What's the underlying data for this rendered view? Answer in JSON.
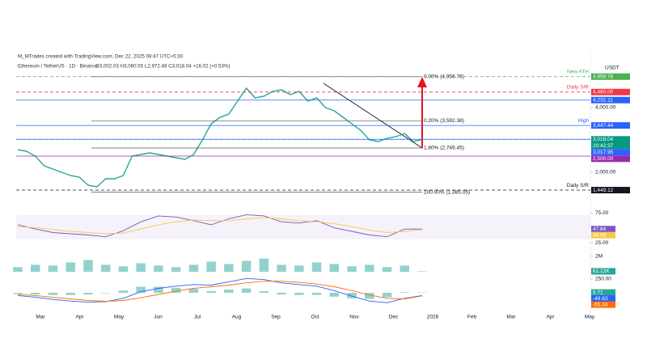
{
  "header": {
    "author_line": "M_MTrades created with TradingView.com, Dec 22, 2025 08:47 UTC+5:30",
    "symbol": "Ethereum / TetherUS · 1D · Binance",
    "ohlc": "O3,002.03 H3,060.55 L2,972.48 C3,018.04 +16.02 (+0.53%)"
  },
  "chart_data": [
    {
      "type": "line",
      "unit": "USDT",
      "months": [
        "Mar",
        "Apr",
        "May",
        "Jun",
        "Jul",
        "Aug",
        "Sep",
        "Oct",
        "Nov",
        "Dec",
        "2026",
        "Feb",
        "Mar",
        "Apr",
        "May"
      ],
      "series": [
        {
          "color": "#26a69a",
          "values": [
            2700,
            2650,
            2500,
            2200,
            2100,
            2000,
            1900,
            1850,
            1600,
            1550,
            1800,
            1800,
            1900,
            2500,
            2550,
            2600,
            2550,
            2500,
            2450,
            2400,
            2550,
            3000,
            3500,
            3700,
            3800,
            4200,
            4600,
            4300,
            4350,
            4500,
            4550,
            4400,
            4500,
            4200,
            4300,
            4000,
            3900,
            3700,
            3500,
            3300,
            3000,
            2950,
            3050,
            3100,
            3200,
            2950,
            3018.04
          ]
        }
      ],
      "ylim": [
        1225,
        5125
      ],
      "yticks": [
        {
          "value": 4000,
          "label": "4,000.00"
        },
        {
          "value": 2000,
          "label": "2,000.00"
        }
      ],
      "fib": [
        {
          "value": 4956.78,
          "label": "0.00% (4,956.78)"
        },
        {
          "value": 3592.38,
          "label": "0.20% (3,592.38)"
        },
        {
          "value": 2749.45,
          "label": "1.80% (2,749.45)"
        },
        {
          "value": 1385.05,
          "label": "100.00% (1,385.05)"
        }
      ],
      "levels": [
        {
          "value": 4956.78,
          "label": "4,956.78",
          "note": "New ATH",
          "color": "#4caf50",
          "dashed": true
        },
        {
          "value": 4480,
          "label": "4,480.00",
          "note": "Daily S/R",
          "color": "#f23645",
          "dashed": true
        },
        {
          "value": 4232.11,
          "label": "4,232.11",
          "color": "#2962ff",
          "dashed": false
        },
        {
          "value": 3447.44,
          "label": "3,447.44",
          "note": "High",
          "color": "#2962ff",
          "dashed": false
        },
        {
          "value": 3018.04,
          "label": "3,018.04",
          "countdown": "20:42:37",
          "color": "#089981",
          "dashed": true
        },
        {
          "value": 3017.95,
          "label": "3,017.95",
          "color": "#2962ff",
          "dashed": false
        },
        {
          "value": 2500,
          "label": "2,500.00",
          "color": "#9c27b0",
          "dashed": false
        },
        {
          "value": 1449.12,
          "label": "1,449.12",
          "note": "Daily S/R",
          "color": "#131722",
          "dashed": true
        }
      ]
    },
    {
      "type": "line",
      "ylim": [
        21,
        82
      ],
      "yticks": [
        {
          "value": 75,
          "label": "75.00"
        },
        {
          "value": 25,
          "label": "25.00"
        }
      ],
      "series": [
        {
          "color": "#7e57c2",
          "values": [
            55,
            48,
            42,
            40,
            38,
            35,
            45,
            60,
            70,
            68,
            62,
            55,
            65,
            72,
            70,
            60,
            58,
            62,
            50,
            44,
            38,
            35,
            48,
            47.84
          ]
        },
        {
          "color": "#f7c948",
          "values": [
            52,
            50,
            47,
            44,
            42,
            40,
            41,
            48,
            55,
            60,
            63,
            62,
            62,
            65,
            67,
            65,
            62,
            60,
            57,
            52,
            46,
            42,
            44,
            46.99
          ]
        }
      ]
    },
    {
      "type": "bar",
      "ylim": [
        0,
        2700
      ],
      "yticks": [
        {
          "value": 2000,
          "label": "2M"
        }
      ],
      "series": [
        {
          "color": "#26a69a",
          "values": [
            600,
            900,
            800,
            1200,
            1500,
            900,
            700,
            1100,
            800,
            600,
            900,
            1300,
            1000,
            1400,
            1700,
            900,
            800,
            1200,
            1000,
            700,
            900,
            600,
            800,
            61.12
          ],
          "value_labels": [
            null,
            null,
            null,
            null,
            null,
            null,
            null,
            null,
            null,
            null,
            null,
            null,
            null,
            null,
            null,
            null,
            null,
            null,
            null,
            null,
            null,
            null,
            null,
            "61.12K"
          ]
        }
      ]
    },
    {
      "type": "line",
      "ylim": [
        -294,
        323
      ],
      "yticks": [
        {
          "value": 250,
          "label": "250.00"
        }
      ],
      "series": [
        {
          "style": "histogram",
          "color": "#26a69a",
          "values": [
            -20,
            -30,
            -40,
            -40,
            -30,
            -5,
            40,
            110,
            110,
            90,
            70,
            30,
            60,
            80,
            30,
            -30,
            -40,
            -40,
            -70,
            -100,
            -110,
            -80,
            10,
            5.71
          ]
        },
        {
          "color": "#2962ff",
          "values": [
            -50,
            -80,
            -120,
            -150,
            -170,
            -160,
            -100,
            20,
            80,
            120,
            150,
            140,
            200,
            260,
            240,
            180,
            150,
            120,
            40,
            -60,
            -150,
            -180,
            -100,
            -49.63
          ]
        },
        {
          "color": "#ff6d00",
          "values": [
            -30,
            -50,
            -80,
            -110,
            -140,
            -155,
            -140,
            -90,
            -30,
            30,
            80,
            110,
            140,
            180,
            210,
            210,
            190,
            160,
            110,
            40,
            -40,
            -100,
            -110,
            -55.34
          ]
        }
      ]
    }
  ]
}
